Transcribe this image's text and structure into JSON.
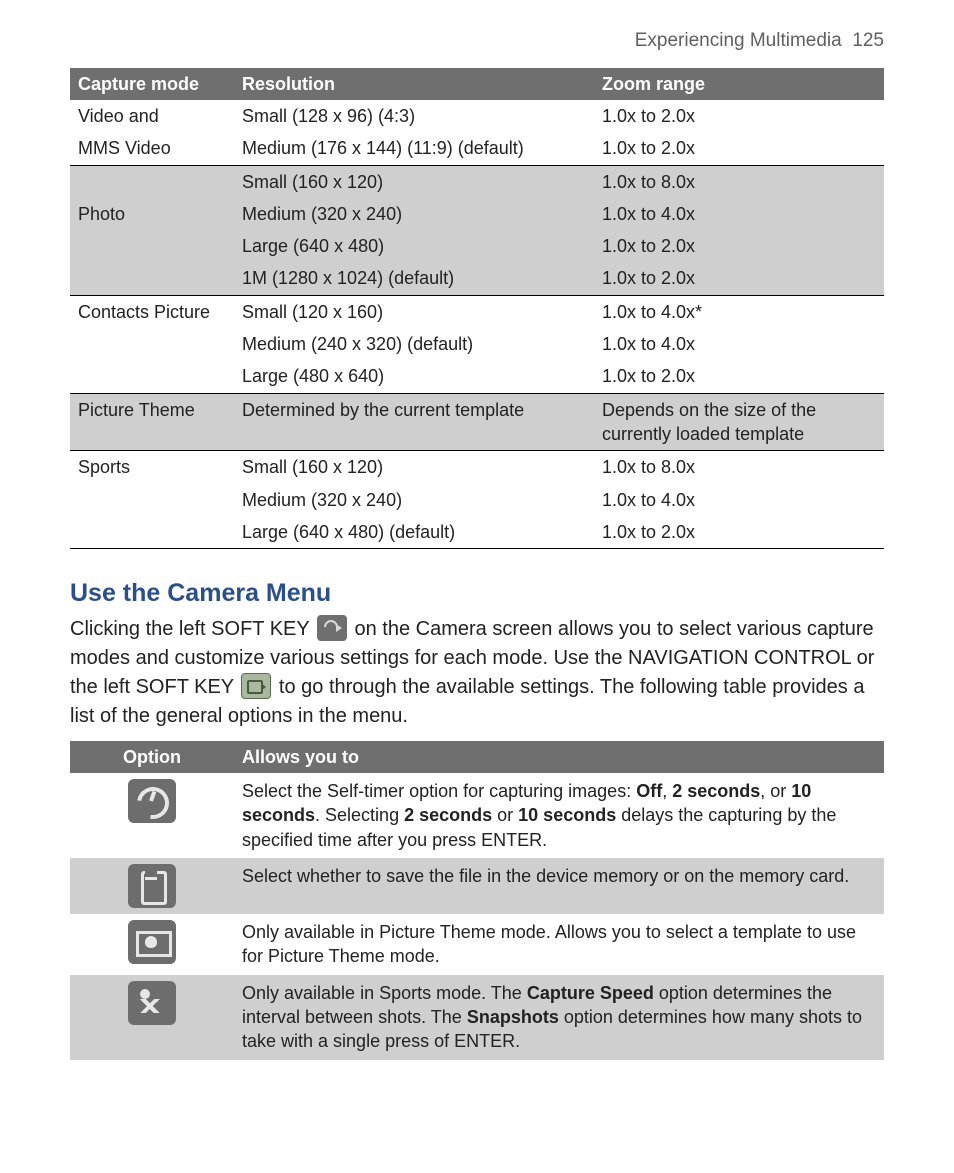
{
  "header": {
    "section": "Experiencing Multimedia",
    "page": "125"
  },
  "res_table": {
    "headers": {
      "c1": "Capture mode",
      "c2": "Resolution",
      "c3": "Zoom range"
    },
    "rows": [
      {
        "band": false,
        "sep": false,
        "c1": "Video and",
        "c2": "Small (128 x 96)  (4:3)",
        "c3": "1.0x to 2.0x"
      },
      {
        "band": false,
        "sep": false,
        "c1": "MMS Video",
        "c2": "Medium (176 x 144) (11:9) (default)",
        "c3": "1.0x to 2.0x"
      },
      {
        "band": true,
        "sep": true,
        "c1": "",
        "c2": "Small (160 x 120)",
        "c3": "1.0x to 8.0x"
      },
      {
        "band": true,
        "sep": false,
        "c1": "Photo",
        "c2": "Medium (320 x 240)",
        "c3": "1.0x to 4.0x"
      },
      {
        "band": true,
        "sep": false,
        "c1": "",
        "c2": "Large (640 x 480)",
        "c3": "1.0x to 2.0x"
      },
      {
        "band": true,
        "sep": false,
        "c1": "",
        "c2": "1M (1280 x 1024) (default)",
        "c3": "1.0x to 2.0x"
      },
      {
        "band": false,
        "sep": true,
        "c1": "Contacts Picture",
        "c2": "Small (120 x 160)",
        "c3": "1.0x to 4.0x*"
      },
      {
        "band": false,
        "sep": false,
        "c1": "",
        "c2": "Medium (240 x 320) (default)",
        "c3": "1.0x to 4.0x"
      },
      {
        "band": false,
        "sep": false,
        "c1": "",
        "c2": "Large (480 x 640)",
        "c3": "1.0x to 2.0x"
      },
      {
        "band": true,
        "sep": true,
        "c1": "Picture Theme",
        "c2": "Determined by the current template",
        "c3": "Depends on the size of the currently loaded template"
      },
      {
        "band": false,
        "sep": true,
        "c1": "Sports",
        "c2": "Small (160 x 120)",
        "c3": "1.0x to 8.0x"
      },
      {
        "band": false,
        "sep": false,
        "c1": "",
        "c2": "Medium (320 x 240)",
        "c3": "1.0x to 4.0x"
      },
      {
        "band": false,
        "sep": false,
        "c1": "",
        "c2": "Large (640 x 480) (default)",
        "c3": "1.0x to 2.0x",
        "last": true
      }
    ]
  },
  "section_title": "Use the Camera Menu",
  "para": {
    "t1": "Clicking the left SOFT KEY ",
    "t2": " on the Camera screen allows you to select various capture modes and customize various settings for each mode. Use the NAVIGATION CONTROL or the left SOFT KEY ",
    "t3": " to go through the available settings. The following table provides a list of the general options in the menu."
  },
  "opt_table": {
    "headers": {
      "c1": "Option",
      "c2": "Allows you to"
    },
    "rows": [
      {
        "band": false,
        "icon": "timer",
        "parts": [
          "Select the Self-timer option for capturing images: ",
          "Off",
          ", ",
          "2 seconds",
          ", or ",
          "10 seconds",
          ". Selecting ",
          "2 seconds",
          " or ",
          "10 seconds",
          " delays the capturing by the specified time after you press ENTER."
        ]
      },
      {
        "band": true,
        "icon": "storage",
        "parts": [
          "Select whether to save the file in the device memory or on the memory card."
        ]
      },
      {
        "band": false,
        "icon": "template",
        "parts": [
          "Only available in Picture Theme mode. Allows you to select a template to use for Picture Theme mode."
        ]
      },
      {
        "band": true,
        "icon": "sports",
        "parts": [
          "Only available in Sports mode. The ",
          "Capture Speed",
          " option determines the interval between shots. The ",
          "Snapshots",
          " option determines how many shots to take with a single press of ENTER."
        ]
      }
    ]
  },
  "bold_set": [
    "Off",
    "2 seconds",
    "10 seconds",
    "Capture Speed",
    "Snapshots"
  ]
}
